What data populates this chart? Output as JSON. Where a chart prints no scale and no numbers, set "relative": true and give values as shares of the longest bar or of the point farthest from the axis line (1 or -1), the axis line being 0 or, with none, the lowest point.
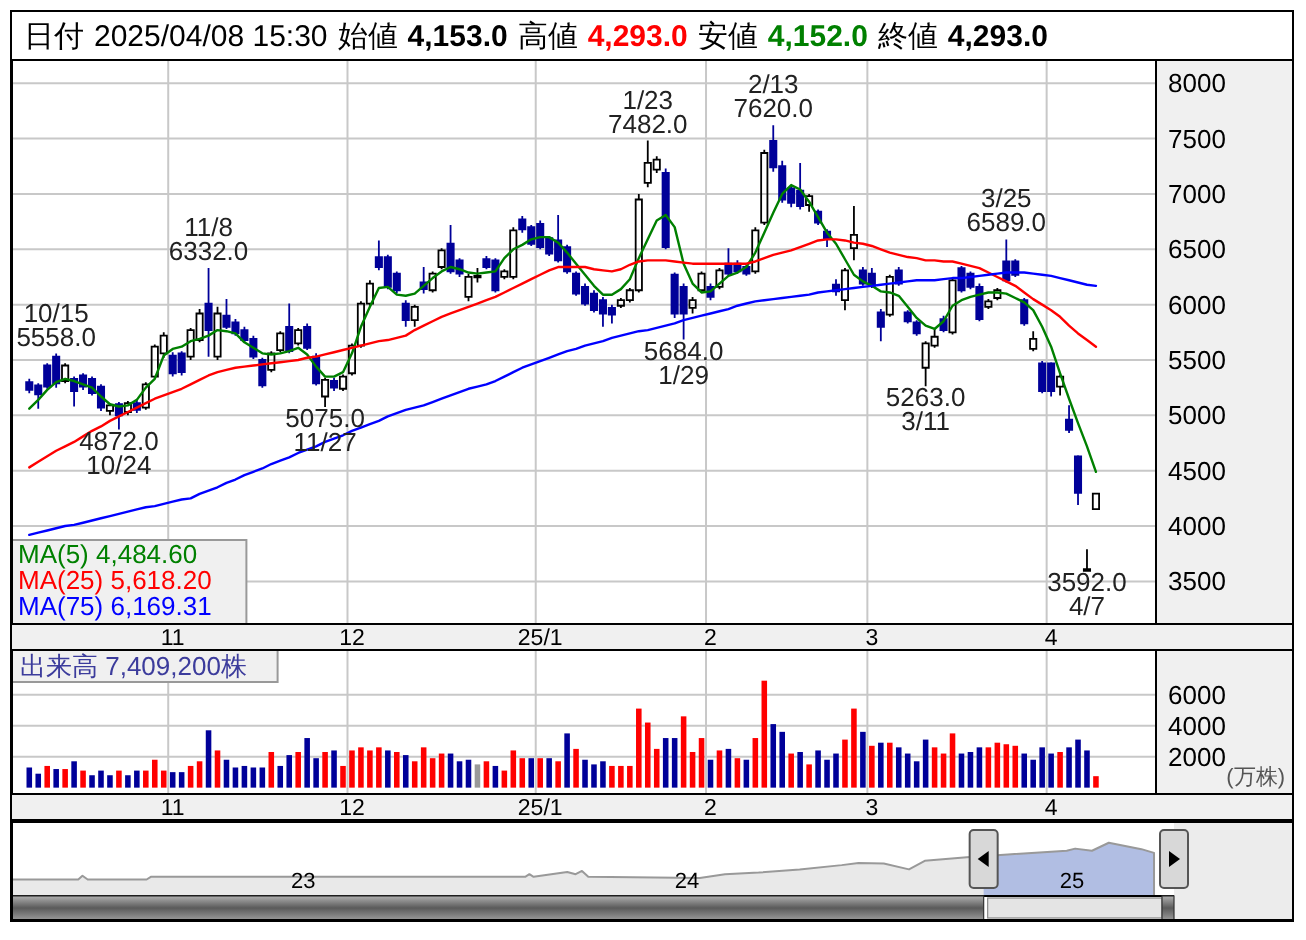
{
  "chart_data": [
    {
      "type": "candlestick",
      "categories": [
        null,
        null,
        null,
        null,
        null,
        null,
        null,
        null,
        null,
        null,
        null,
        null,
        null,
        null,
        null,
        null,
        "11",
        null,
        null,
        null,
        null,
        null,
        null,
        null,
        null,
        null,
        null,
        null,
        null,
        null,
        null,
        null,
        null,
        null,
        null,
        null,
        "12",
        null,
        null,
        null,
        null,
        null,
        null,
        null,
        null,
        null,
        null,
        null,
        null,
        null,
        null,
        null,
        null,
        null,
        null,
        null,
        null,
        "25/1",
        null,
        null,
        null,
        null,
        null,
        null,
        null,
        null,
        null,
        null,
        null,
        null,
        null,
        null,
        null,
        null,
        null,
        null,
        "2",
        null,
        null,
        null,
        null,
        null,
        null,
        null,
        null,
        null,
        null,
        null,
        null,
        null,
        null,
        null,
        null,
        null,
        "3",
        null,
        null,
        null,
        null,
        null,
        null,
        null,
        null,
        null,
        null,
        null,
        null,
        null,
        null,
        null,
        null,
        null,
        null,
        null,
        "4",
        null,
        null,
        null,
        null,
        null
      ],
      "ohlc": [
        [
          5300,
          5330,
          5200,
          5230
        ],
        [
          5270,
          5290,
          5060,
          5190
        ],
        [
          5450,
          5470,
          5240,
          5260
        ],
        [
          5530,
          5558,
          5250,
          5290
        ],
        [
          5310,
          5470,
          5290,
          5450
        ],
        [
          5330,
          5350,
          5080,
          5220
        ],
        [
          5360,
          5380,
          5230,
          5260
        ],
        [
          5330,
          5350,
          5180,
          5200
        ],
        [
          5260,
          5280,
          5040,
          5070
        ],
        [
          5040,
          5110,
          5000,
          5090
        ],
        [
          5100,
          5120,
          4872,
          5000
        ],
        [
          5030,
          5130,
          5000,
          5110
        ],
        [
          5110,
          5140,
          5020,
          5050
        ],
        [
          5070,
          5300,
          5050,
          5280
        ],
        [
          5350,
          5640,
          5330,
          5620
        ],
        [
          5560,
          5750,
          5520,
          5720
        ],
        [
          5540,
          5570,
          5350,
          5380
        ],
        [
          5560,
          5580,
          5360,
          5390
        ],
        [
          5530,
          5790,
          5500,
          5770
        ],
        [
          5680,
          5960,
          5660,
          5920
        ],
        [
          6010,
          6332,
          5530,
          5770
        ],
        [
          5530,
          5980,
          5500,
          5920
        ],
        [
          5900,
          6050,
          5780,
          5800
        ],
        [
          5840,
          5870,
          5720,
          5740
        ],
        [
          5770,
          5800,
          5660,
          5680
        ],
        [
          5690,
          5720,
          5510,
          5530
        ],
        [
          5500,
          5520,
          5250,
          5270
        ],
        [
          5410,
          5580,
          5390,
          5560
        ],
        [
          5590,
          5760,
          5570,
          5740
        ],
        [
          5800,
          6010,
          5560,
          5580
        ],
        [
          5650,
          5790,
          5630,
          5770
        ],
        [
          5800,
          5830,
          5590,
          5610
        ],
        [
          5530,
          5560,
          5270,
          5290
        ],
        [
          5170,
          5340,
          5075,
          5320
        ],
        [
          5310,
          5340,
          5220,
          5250
        ],
        [
          5240,
          5370,
          5220,
          5350
        ],
        [
          5380,
          5650,
          5360,
          5630
        ],
        [
          5630,
          6030,
          5610,
          6010
        ],
        [
          6010,
          6220,
          5990,
          6190
        ],
        [
          6430,
          6580,
          6310,
          6340
        ],
        [
          6430,
          6450,
          6140,
          6160
        ],
        [
          6280,
          6300,
          6100,
          6130
        ],
        [
          6010,
          6040,
          5800,
          5860
        ],
        [
          5860,
          6000,
          5800,
          5980
        ],
        [
          6200,
          6340,
          6100,
          6140
        ],
        [
          6130,
          6300,
          6110,
          6280
        ],
        [
          6340,
          6510,
          6320,
          6490
        ],
        [
          6550,
          6720,
          6280,
          6300
        ],
        [
          6400,
          6420,
          6250,
          6280
        ],
        [
          6070,
          6280,
          6030,
          6250
        ],
        [
          6260,
          6330,
          6200,
          6260
        ],
        [
          6410,
          6440,
          6320,
          6340
        ],
        [
          6400,
          6420,
          6110,
          6130
        ],
        [
          6250,
          6320,
          6230,
          6300
        ],
        [
          6250,
          6700,
          6230,
          6670
        ],
        [
          6770,
          6800,
          6650,
          6680
        ],
        [
          6700,
          6720,
          6530,
          6550
        ],
        [
          6730,
          6760,
          6500,
          6520
        ],
        [
          6600,
          6620,
          6440,
          6460
        ],
        [
          6580,
          6810,
          6380,
          6400
        ],
        [
          6520,
          6540,
          6280,
          6300
        ],
        [
          6280,
          6300,
          6080,
          6100
        ],
        [
          6160,
          6190,
          5990,
          6010
        ],
        [
          6100,
          6130,
          5930,
          5950
        ],
        [
          6040,
          6070,
          5800,
          5920
        ],
        [
          5970,
          6000,
          5830,
          5910
        ],
        [
          5990,
          6060,
          5970,
          6040
        ],
        [
          6040,
          6150,
          6020,
          6130
        ],
        [
          6130,
          7000,
          6110,
          6950
        ],
        [
          7100,
          7482,
          7060,
          7280
        ],
        [
          7220,
          7340,
          7190,
          7310
        ],
        [
          7190,
          7230,
          6500,
          6520
        ],
        [
          6270,
          6290,
          5880,
          5920
        ],
        [
          6160,
          6190,
          5684,
          5920
        ],
        [
          5970,
          6070,
          5920,
          6040
        ],
        [
          6130,
          6300,
          6110,
          6280
        ],
        [
          6160,
          6190,
          6040,
          6070
        ],
        [
          6160,
          6330,
          6140,
          6310
        ],
        [
          6370,
          6510,
          6260,
          6280
        ],
        [
          6370,
          6400,
          6280,
          6300
        ],
        [
          6340,
          6360,
          6260,
          6280
        ],
        [
          6300,
          6700,
          6280,
          6670
        ],
        [
          6740,
          7400,
          6720,
          7370
        ],
        [
          7480,
          7620,
          7200,
          7240
        ],
        [
          7250,
          7300,
          6920,
          6950
        ],
        [
          7050,
          7080,
          6880,
          6920
        ],
        [
          7030,
          7280,
          6860,
          6890
        ],
        [
          6900,
          7000,
          6840,
          6980
        ],
        [
          6840,
          6860,
          6720,
          6740
        ],
        [
          6660,
          6680,
          6520,
          6600
        ],
        [
          6180,
          6230,
          6080,
          6120
        ],
        [
          6040,
          6330,
          5950,
          6310
        ],
        [
          6510,
          6890,
          6400,
          6630
        ],
        [
          6310,
          6340,
          6170,
          6190
        ],
        [
          6280,
          6330,
          6150,
          6170
        ],
        [
          5930,
          5960,
          5670,
          5800
        ],
        [
          5910,
          6270,
          5890,
          6250
        ],
        [
          6310,
          6340,
          6170,
          6190
        ],
        [
          5930,
          5950,
          5830,
          5850
        ],
        [
          5840,
          5860,
          5720,
          5740
        ],
        [
          5430,
          5670,
          5263,
          5650
        ],
        [
          5630,
          5780,
          5610,
          5710
        ],
        [
          5870,
          5900,
          5750,
          5770
        ],
        [
          5750,
          6240,
          5730,
          6220
        ],
        [
          6330,
          6350,
          6110,
          6130
        ],
        [
          6280,
          6300,
          6140,
          6160
        ],
        [
          6160,
          6190,
          5850,
          5870
        ],
        [
          5980,
          6050,
          5960,
          6030
        ],
        [
          6060,
          6150,
          6040,
          6130
        ],
        [
          6390,
          6589,
          6200,
          6220
        ],
        [
          6390,
          6410,
          6250,
          6270
        ],
        [
          6040,
          6060,
          5810,
          5830
        ],
        [
          5600,
          5760,
          5580,
          5690
        ],
        [
          5470,
          5490,
          5200,
          5220
        ],
        [
          5470,
          5480,
          5170,
          5220
        ],
        [
          5260,
          5370,
          5180,
          5350
        ],
        [
          4960,
          5090,
          4840,
          4870
        ],
        [
          4630,
          4640,
          4190,
          4300
        ],
        [
          3600,
          3790,
          3592,
          3610
        ],
        [
          4153,
          4293,
          4152,
          4293
        ]
      ],
      "colors": [
        "#000099",
        "#000099",
        "#000099",
        "#000099",
        "#000000",
        "#000099",
        "#000099",
        "#000099",
        "#000099",
        "#000000",
        "#000099",
        "#000000",
        "#000099",
        "#000000",
        "#000000",
        "#000000",
        "#000099",
        "#000099",
        "#000000",
        "#000000",
        "#000099",
        "#000000",
        "#000099",
        "#000099",
        "#000099",
        "#000099",
        "#000099",
        "#000000",
        "#000000",
        "#000099",
        "#000000",
        "#000099",
        "#000099",
        "#000000",
        "#000099",
        "#000000",
        "#000000",
        "#000000",
        "#000000",
        "#000099",
        "#000099",
        "#000099",
        "#000099",
        "#000000",
        "#000099",
        "#000000",
        "#000000",
        "#000099",
        "#000099",
        "#000000",
        "#000000",
        "#000099",
        "#000099",
        "#000000",
        "#000000",
        "#000099",
        "#000099",
        "#000099",
        "#000099",
        "#000099",
        "#000099",
        "#000099",
        "#000099",
        "#000099",
        "#000099",
        "#000099",
        "#000000",
        "#000000",
        "#000000",
        "#000000",
        "#000000",
        "#000099",
        "#000099",
        "#000099",
        "#000000",
        "#000000",
        "#000099",
        "#000000",
        "#000099",
        "#000099",
        "#000099",
        "#000000",
        "#000000",
        "#000099",
        "#000099",
        "#000099",
        "#000099",
        "#000000",
        "#000099",
        "#000099",
        "#000099",
        "#000000",
        "#000000",
        "#000099",
        "#000099",
        "#000099",
        "#000000",
        "#000099",
        "#000099",
        "#000099",
        "#000000",
        "#000000",
        "#000099",
        "#000000",
        "#000099",
        "#000099",
        "#000099",
        "#000000",
        "#000000",
        "#000099",
        "#000099",
        "#000099",
        "#000000",
        "#000099",
        "#000099",
        "#000000",
        "#000099",
        "#000099",
        "#000000",
        "#000000"
      ],
      "series": [
        {
          "type": "line",
          "name": "MA(5) 4,484.60",
          "color": "#008000",
          "values": [
            5060,
            5140,
            5230,
            5300,
            5330,
            5310,
            5280,
            5250,
            5170,
            5100,
            5080,
            5090,
            5140,
            5250,
            5330,
            5540,
            5600,
            5620,
            5670,
            5690,
            5720,
            5770,
            5760,
            5740,
            5660,
            5610,
            5560,
            5550,
            5560,
            5580,
            5610,
            5550,
            5440,
            5350,
            5350,
            5390,
            5560,
            5800,
            5980,
            6150,
            6160,
            6090,
            6080,
            6100,
            6170,
            6240,
            6300,
            6340,
            6320,
            6290,
            6280,
            6290,
            6300,
            6420,
            6500,
            6540,
            6590,
            6610,
            6610,
            6560,
            6470,
            6370,
            6270,
            6170,
            6090,
            6090,
            6140,
            6230,
            6420,
            6590,
            6760,
            6810,
            6700,
            6370,
            6190,
            6110,
            6120,
            6190,
            6260,
            6290,
            6340,
            6470,
            6650,
            6830,
            7000,
            7080,
            7040,
            6930,
            6790,
            6650,
            6550,
            6410,
            6270,
            6210,
            6170,
            6120,
            6110,
            6080,
            5980,
            5880,
            5810,
            5780,
            5850,
            5990,
            6040,
            6070,
            6090,
            6110,
            6110,
            6100,
            6060,
            6020,
            5950,
            5800,
            5620,
            5380,
            5150,
            4930,
            4720,
            4490
          ]
        },
        {
          "type": "line",
          "name": "MA(25) 5,618.20",
          "color": "#ff0000",
          "values": [
            4530,
            4580,
            4630,
            4680,
            4720,
            4760,
            4810,
            4860,
            4900,
            4950,
            4990,
            5030,
            5070,
            5110,
            5150,
            5180,
            5210,
            5240,
            5280,
            5320,
            5360,
            5390,
            5410,
            5430,
            5440,
            5450,
            5460,
            5470,
            5480,
            5490,
            5500,
            5520,
            5530,
            5550,
            5570,
            5590,
            5610,
            5630,
            5650,
            5670,
            5680,
            5700,
            5720,
            5770,
            5810,
            5850,
            5890,
            5920,
            5950,
            5980,
            6010,
            6040,
            6070,
            6110,
            6150,
            6190,
            6230,
            6270,
            6310,
            6340,
            6340,
            6340,
            6340,
            6320,
            6310,
            6300,
            6320,
            6360,
            6390,
            6400,
            6400,
            6400,
            6390,
            6380,
            6370,
            6370,
            6370,
            6370,
            6370,
            6370,
            6370,
            6390,
            6420,
            6450,
            6470,
            6490,
            6520,
            6550,
            6580,
            6590,
            6590,
            6580,
            6560,
            6550,
            6530,
            6500,
            6470,
            6450,
            6430,
            6420,
            6400,
            6400,
            6390,
            6390,
            6370,
            6350,
            6330,
            6290,
            6250,
            6210,
            6170,
            6110,
            6050,
            6000,
            5950,
            5890,
            5810,
            5740,
            5680,
            5620
          ]
        },
        {
          "type": "line",
          "name": "MA(75) 6,169.31",
          "color": "#0000ff",
          "values": [
            3920,
            3940,
            3960,
            3980,
            4000,
            4010,
            4030,
            4050,
            4070,
            4090,
            4110,
            4130,
            4150,
            4170,
            4180,
            4200,
            4220,
            4240,
            4250,
            4290,
            4320,
            4350,
            4390,
            4420,
            4460,
            4490,
            4520,
            4560,
            4590,
            4620,
            4660,
            4690,
            4720,
            4760,
            4790,
            4820,
            4860,
            4890,
            4920,
            4950,
            4990,
            5020,
            5050,
            5070,
            5090,
            5120,
            5150,
            5180,
            5210,
            5240,
            5260,
            5280,
            5310,
            5350,
            5390,
            5430,
            5460,
            5490,
            5520,
            5550,
            5580,
            5600,
            5630,
            5650,
            5670,
            5700,
            5720,
            5740,
            5760,
            5770,
            5790,
            5810,
            5830,
            5860,
            5880,
            5900,
            5920,
            5940,
            5960,
            5990,
            6010,
            6030,
            6040,
            6050,
            6060,
            6070,
            6080,
            6090,
            6110,
            6120,
            6130,
            6140,
            6150,
            6160,
            6170,
            6180,
            6190,
            6200,
            6210,
            6220,
            6220,
            6220,
            6230,
            6240,
            6240,
            6250,
            6260,
            6270,
            6280,
            6290,
            6290,
            6290,
            6280,
            6270,
            6260,
            6240,
            6220,
            6200,
            6180,
            6170
          ]
        }
      ],
      "ylim": [
        3115,
        8210
      ],
      "yticks": [
        3500,
        4000,
        4500,
        5000,
        5500,
        6000,
        6500,
        7000,
        7500,
        8000
      ],
      "grid": true,
      "legend": "bottom left",
      "annotations": [
        "日付",
        "2025/04/08 15:30",
        "始値",
        "4,153.0",
        "高値",
        "4,293.0",
        "安値",
        "4,152.0",
        "終値",
        "4,293.0",
        {
          "text": "10/15\n5558.0",
          "y": 5558
        },
        {
          "text": "4872.0\n10/24",
          "y": 4872
        },
        {
          "text": "11/8\n6332.0",
          "y": 6332
        },
        {
          "text": "5075.0\n11/27",
          "y": 5075
        },
        {
          "text": "1/23\n7482.0",
          "y": 7482
        },
        {
          "text": "5684.0\n1/29",
          "y": 5684
        },
        {
          "text": "2/13\n7620.0",
          "y": 7620
        },
        {
          "text": "5263.0\n3/11",
          "y": 5263
        },
        {
          "text": "3/25\n6589.0",
          "y": 6589
        },
        {
          "text": "3592.0\n4/7",
          "y": 3592
        }
      ]
    },
    {
      "type": "bar",
      "title": "出来高 7,409,200株",
      "ylabel": "(万株)",
      "categories": [
        null,
        null,
        null,
        null,
        null,
        null,
        null,
        null,
        null,
        null,
        null,
        null,
        null,
        null,
        null,
        null,
        "11",
        null,
        null,
        null,
        null,
        null,
        null,
        null,
        null,
        null,
        null,
        null,
        null,
        null,
        null,
        null,
        null,
        null,
        null,
        null,
        "12",
        null,
        null,
        null,
        null,
        null,
        null,
        null,
        null,
        null,
        null,
        null,
        null,
        null,
        null,
        null,
        null,
        null,
        null,
        null,
        null,
        "25/1",
        null,
        null,
        null,
        null,
        null,
        null,
        null,
        null,
        null,
        null,
        null,
        null,
        null,
        null,
        null,
        null,
        null,
        null,
        "2",
        null,
        null,
        null,
        null,
        null,
        null,
        null,
        null,
        null,
        null,
        null,
        null,
        null,
        null,
        null,
        null,
        null,
        "3",
        null,
        null,
        null,
        null,
        null,
        null,
        null,
        null,
        null,
        null,
        null,
        null,
        null,
        null,
        null,
        null,
        null,
        null,
        null,
        "4",
        null,
        null,
        null,
        null,
        null
      ],
      "values": [
        1300,
        900,
        1400,
        1200,
        1200,
        1700,
        1100,
        800,
        1100,
        800,
        1100,
        800,
        1100,
        1100,
        1800,
        1100,
        1000,
        1000,
        1400,
        1700,
        3700,
        2400,
        1800,
        1300,
        1400,
        1300,
        1300,
        2300,
        1400,
        2100,
        2300,
        3200,
        1900,
        2300,
        2400,
        1400,
        2400,
        2600,
        2400,
        2600,
        2400,
        2300,
        2100,
        1700,
        2600,
        1900,
        2200,
        2200,
        1700,
        1800,
        1500,
        1700,
        1400,
        1100,
        2400,
        1900,
        1900,
        1900,
        1900,
        1700,
        3500,
        2500,
        1800,
        1500,
        1700,
        1400,
        1400,
        1400,
        5100,
        4200,
        2500,
        3200,
        3200,
        4600,
        2300,
        3200,
        1800,
        2400,
        2500,
        1900,
        1800,
        3200,
        6900,
        4100,
        3600,
        2200,
        2300,
        1500,
        2400,
        1800,
        2200,
        3100,
        5100,
        3600,
        2700,
        2900,
        2900,
        2600,
        2200,
        1700,
        3100,
        2600,
        2200,
        3500,
        2200,
        2300,
        2600,
        2600,
        2900,
        2800,
        2700,
        2200,
        1800,
        2600,
        2200,
        2300,
        2600,
        3100,
        2400,
        740
      ],
      "colors": [
        "#000099",
        "#000099",
        "#ff0000",
        "#000099",
        "#ff0000",
        "#000099",
        "#ff0000",
        "#000099",
        "#000099",
        "#000099",
        "#ff0000",
        "#000099",
        "#000099",
        "#ff0000",
        "#ff0000",
        "#ff0000",
        "#000099",
        "#000099",
        "#ff0000",
        "#ff0000",
        "#000099",
        "#ff0000",
        "#000099",
        "#000099",
        "#000099",
        "#000099",
        "#000099",
        "#ff0000",
        "#000099",
        "#000099",
        "#ff0000",
        "#000099",
        "#000099",
        "#ff0000",
        "#000099",
        "#ff0000",
        "#ff0000",
        "#ff0000",
        "#ff0000",
        "#ff0000",
        "#000099",
        "#ff0000",
        "#000099",
        "#ff0000",
        "#ff0000",
        "#ff0000",
        "#ff0000",
        "#000099",
        "#000099",
        "#000099",
        "#999999",
        "#ff0000",
        "#000099",
        "#ff0000",
        "#ff0000",
        "#ff0000",
        "#000099",
        "#ff0000",
        "#000099",
        "#ff0000",
        "#000099",
        "#ff0000",
        "#000099",
        "#000099",
        "#000099",
        "#ff0000",
        "#ff0000",
        "#ff0000",
        "#ff0000",
        "#ff0000",
        "#ff0000",
        "#000099",
        "#000099",
        "#ff0000",
        "#ff0000",
        "#ff0000",
        "#000099",
        "#ff0000",
        "#000099",
        "#ff0000",
        "#000099",
        "#ff0000",
        "#ff0000",
        "#000099",
        "#000099",
        "#ff0000",
        "#000099",
        "#ff0000",
        "#000099",
        "#000099",
        "#000099",
        "#ff0000",
        "#ff0000",
        "#000099",
        "#ff0000",
        "#000099",
        "#ff0000",
        "#000099",
        "#000099",
        "#000099",
        "#000099",
        "#ff0000",
        "#ff0000",
        "#ff0000",
        "#000099",
        "#000099",
        "#000099",
        "#ff0000",
        "#ff0000",
        "#ff0000",
        "#ff0000",
        "#000099",
        "#000099",
        "#000099",
        "#000099",
        "#ff0000",
        "#000099",
        "#000099",
        "#000099",
        "#ff0000"
      ],
      "ylim": [
        -410,
        8880
      ],
      "yticks": [
        2000,
        4000,
        6000
      ],
      "grid": true
    },
    {
      "type": "area",
      "relative": true,
      "color": "#999999",
      "x": [
        "2022-03-30",
        "2022-04-08",
        "2022-06-01",
        "2022-06-05",
        "2022-06-10",
        "2022-08-05",
        "2022-08-09",
        "2023-07-31",
        "2023-08-04",
        "2023-08-08",
        "2023-09-09",
        "2023-09-17",
        "2023-09-23",
        "2023-09-29",
        "2024-01-13",
        "2024-02-06",
        "2024-03-09",
        "2024-04-17",
        "2024-05-27",
        "2024-06-12",
        "2024-07-06",
        "2024-07-30",
        "2024-08-14",
        "2024-09-23",
        "2024-11-01",
        "2024-12-27",
        "2025-01-04",
        "2025-01-20",
        "2025-02-05",
        "2025-03-08",
        "2025-03-20"
      ],
      "values": [
        0.31,
        0.31,
        0.31,
        0.38,
        0.31,
        0.31,
        0.36,
        0.36,
        0.41,
        0.36,
        0.45,
        0.41,
        0.47,
        0.36,
        0.34,
        0.41,
        0.44,
        0.5,
        0.58,
        0.62,
        0.61,
        0.5,
        0.66,
        0.73,
        0.78,
        0.85,
        0.89,
        0.85,
        1,
        0.88,
        0.81
      ],
      "xlim": [
        "2022-03-30",
        "2025-04-08"
      ],
      "xticks": [
        {
          "value": "2023-01-01",
          "label": "23"
        },
        {
          "value": "2024-01-01",
          "label": "24"
        },
        {
          "value": "2025-01-01",
          "label": "25"
        }
      ],
      "bands": [
        {
          "axis": "x",
          "from": "2024-10-09",
          "to": "2025-04-08",
          "color": "#b8c8f8"
        }
      ]
    }
  ]
}
